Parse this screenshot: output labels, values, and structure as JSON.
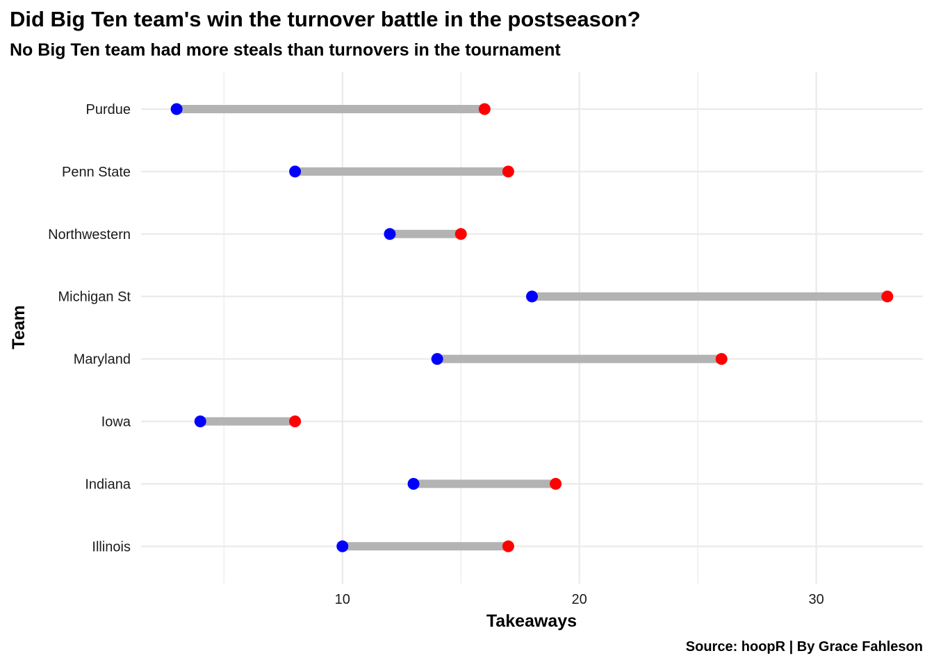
{
  "title": "Did Big Ten team's win the turnover battle in the postseason?",
  "subtitle": "No Big Ten team had more steals than turnovers in the tournament",
  "caption": "Source: hoopR | By Grace Fahleson",
  "chart_data": {
    "type": "dumbbell",
    "title": "Did Big Ten team's win the turnover battle in the postseason?",
    "subtitle": "No Big Ten team had more steals than turnovers in the tournament",
    "xlabel": "Takeaways",
    "ylabel": "Team",
    "xlim": [
      1.5,
      34.5
    ],
    "xticks": [
      10,
      20,
      30
    ],
    "grid": true,
    "categories": [
      "Purdue",
      "Penn State",
      "Northwestern",
      "Michigan St",
      "Maryland",
      "Iowa",
      "Indiana",
      "Illinois"
    ],
    "series": [
      {
        "color": "#0000ff",
        "values": [
          3,
          8,
          12,
          18,
          14,
          4,
          13,
          10
        ]
      },
      {
        "color": "#ff0000",
        "values": [
          16,
          17,
          15,
          33,
          26,
          8,
          19,
          17
        ]
      }
    ],
    "segment_color": "#b3b3b3"
  }
}
